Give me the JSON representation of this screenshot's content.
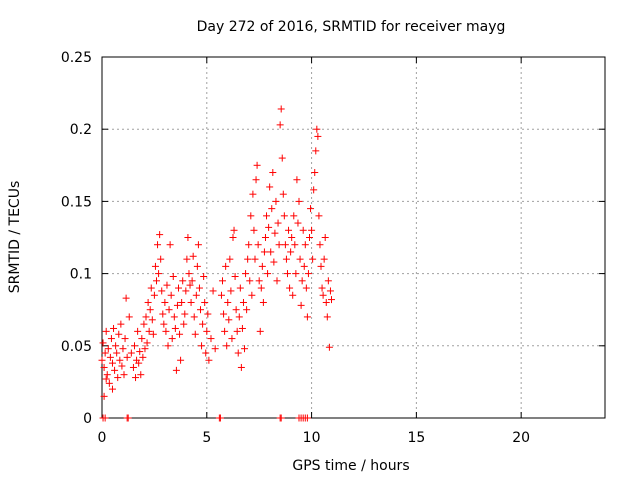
{
  "chart_data": {
    "type": "scatter",
    "title": "Day 272 of 2016, SRMTID for receiver mayg",
    "xlabel": "GPS time / hours",
    "ylabel": "SRMTID / TECUs",
    "xlim": [
      0,
      24
    ],
    "ylim": [
      0,
      0.25
    ],
    "xticks": [
      0,
      5,
      10,
      15,
      20
    ],
    "yticks": [
      0,
      0.05,
      0.1,
      0.15,
      0.2,
      0.25
    ],
    "xtick_labels": [
      "0",
      "5",
      "10",
      "15",
      "20"
    ],
    "ytick_labels": [
      "0",
      "0.05",
      "0.1",
      "0.15",
      "0.2",
      "0.25"
    ],
    "grid": true,
    "marker": "+",
    "color": "#ff0000",
    "series": [
      {
        "name": "SRMTID",
        "points": [
          [
            0.0,
            0.04
          ],
          [
            0.05,
            0.052
          ],
          [
            0.1,
            0.035
          ],
          [
            0.15,
            0.045
          ],
          [
            0.2,
            0.06
          ],
          [
            0.25,
            0.03
          ],
          [
            0.3,
            0.048
          ],
          [
            0.35,
            0.024
          ],
          [
            0.4,
            0.042
          ],
          [
            0.45,
            0.055
          ],
          [
            0.5,
            0.038
          ],
          [
            0.55,
            0.062
          ],
          [
            0.6,
            0.033
          ],
          [
            0.65,
            0.05
          ],
          [
            0.7,
            0.045
          ],
          [
            0.75,
            0.028
          ],
          [
            0.8,
            0.058
          ],
          [
            0.85,
            0.04
          ],
          [
            0.9,
            0.065
          ],
          [
            0.95,
            0.036
          ],
          [
            1.0,
            0.048
          ],
          [
            1.05,
            0.03
          ],
          [
            1.1,
            0.055
          ],
          [
            1.15,
            0.083
          ],
          [
            1.2,
            0.042
          ],
          [
            0.1,
            0.015
          ],
          [
            0.2,
            0.027
          ],
          [
            0.5,
            0.02
          ],
          [
            1.3,
            0.07
          ],
          [
            1.4,
            0.045
          ],
          [
            1.5,
            0.035
          ],
          [
            1.55,
            0.05
          ],
          [
            1.6,
            0.028
          ],
          [
            1.65,
            0.04
          ],
          [
            1.7,
            0.06
          ],
          [
            1.75,
            0.038
          ],
          [
            1.8,
            0.046
          ],
          [
            1.85,
            0.03
          ],
          [
            1.9,
            0.055
          ],
          [
            1.95,
            0.042
          ],
          [
            2.0,
            0.065
          ],
          [
            2.05,
            0.048
          ],
          [
            2.1,
            0.07
          ],
          [
            2.15,
            0.052
          ],
          [
            2.2,
            0.08
          ],
          [
            2.25,
            0.06
          ],
          [
            2.3,
            0.075
          ],
          [
            2.35,
            0.09
          ],
          [
            2.4,
            0.068
          ],
          [
            2.45,
            0.058
          ],
          [
            2.5,
            0.085
          ],
          [
            2.55,
            0.105
          ],
          [
            2.6,
            0.095
          ],
          [
            2.65,
            0.12
          ],
          [
            2.7,
            0.1
          ],
          [
            2.75,
            0.127
          ],
          [
            2.8,
            0.11
          ],
          [
            2.85,
            0.088
          ],
          [
            2.9,
            0.072
          ],
          [
            2.95,
            0.065
          ],
          [
            3.0,
            0.08
          ],
          [
            3.05,
            0.06
          ],
          [
            3.1,
            0.092
          ],
          [
            3.15,
            0.05
          ],
          [
            3.2,
            0.075
          ],
          [
            3.25,
            0.12
          ],
          [
            3.3,
            0.085
          ],
          [
            3.35,
            0.055
          ],
          [
            3.4,
            0.098
          ],
          [
            3.45,
            0.07
          ],
          [
            3.5,
            0.062
          ],
          [
            3.55,
            0.033
          ],
          [
            3.6,
            0.078
          ],
          [
            3.65,
            0.09
          ],
          [
            3.7,
            0.058
          ],
          [
            3.75,
            0.04
          ],
          [
            3.8,
            0.08
          ],
          [
            3.85,
            0.095
          ],
          [
            3.9,
            0.065
          ],
          [
            3.95,
            0.072
          ],
          [
            4.0,
            0.088
          ],
          [
            4.05,
            0.11
          ],
          [
            4.1,
            0.125
          ],
          [
            4.15,
            0.1
          ],
          [
            4.2,
            0.092
          ],
          [
            4.25,
            0.08
          ],
          [
            4.3,
            0.095
          ],
          [
            4.35,
            0.112
          ],
          [
            4.4,
            0.07
          ],
          [
            4.45,
            0.058
          ],
          [
            4.5,
            0.085
          ],
          [
            4.55,
            0.105
          ],
          [
            4.6,
            0.12
          ],
          [
            4.65,
            0.09
          ],
          [
            4.7,
            0.075
          ],
          [
            4.75,
            0.05
          ],
          [
            4.8,
            0.065
          ],
          [
            4.85,
            0.098
          ],
          [
            4.9,
            0.08
          ],
          [
            4.95,
            0.045
          ],
          [
            5.0,
            0.06
          ],
          [
            5.05,
            0.072
          ],
          [
            5.1,
            0.04
          ],
          [
            5.2,
            0.055
          ],
          [
            5.3,
            0.088
          ],
          [
            5.4,
            0.048
          ],
          [
            5.7,
            0.085
          ],
          [
            5.75,
            0.095
          ],
          [
            5.8,
            0.072
          ],
          [
            5.85,
            0.06
          ],
          [
            5.9,
            0.105
          ],
          [
            5.95,
            0.05
          ],
          [
            6.0,
            0.08
          ],
          [
            6.05,
            0.068
          ],
          [
            6.1,
            0.11
          ],
          [
            6.15,
            0.088
          ],
          [
            6.2,
            0.055
          ],
          [
            6.25,
            0.125
          ],
          [
            6.3,
            0.13
          ],
          [
            6.35,
            0.098
          ],
          [
            6.4,
            0.075
          ],
          [
            6.45,
            0.06
          ],
          [
            6.5,
            0.045
          ],
          [
            6.55,
            0.07
          ],
          [
            6.6,
            0.09
          ],
          [
            6.65,
            0.035
          ],
          [
            6.7,
            0.062
          ],
          [
            6.75,
            0.08
          ],
          [
            6.8,
            0.048
          ],
          [
            6.85,
            0.1
          ],
          [
            6.9,
            0.075
          ],
          [
            6.95,
            0.11
          ],
          [
            7.0,
            0.12
          ],
          [
            7.05,
            0.095
          ],
          [
            7.1,
            0.14
          ],
          [
            7.15,
            0.085
          ],
          [
            7.2,
            0.155
          ],
          [
            7.25,
            0.13
          ],
          [
            7.3,
            0.11
          ],
          [
            7.35,
            0.165
          ],
          [
            7.4,
            0.175
          ],
          [
            7.45,
            0.12
          ],
          [
            7.5,
            0.095
          ],
          [
            7.55,
            0.06
          ],
          [
            7.6,
            0.09
          ],
          [
            7.65,
            0.105
          ],
          [
            7.7,
            0.08
          ],
          [
            7.75,
            0.115
          ],
          [
            7.8,
            0.125
          ],
          [
            7.85,
            0.14
          ],
          [
            7.9,
            0.1
          ],
          [
            7.95,
            0.132
          ],
          [
            8.0,
            0.16
          ],
          [
            8.05,
            0.115
          ],
          [
            8.1,
            0.145
          ],
          [
            8.15,
            0.17
          ],
          [
            8.2,
            0.108
          ],
          [
            8.25,
            0.128
          ],
          [
            8.3,
            0.15
          ],
          [
            8.35,
            0.095
          ],
          [
            8.4,
            0.135
          ],
          [
            8.45,
            0.12
          ],
          [
            8.5,
            0.203
          ],
          [
            8.55,
            0.214
          ],
          [
            8.6,
            0.18
          ],
          [
            8.65,
            0.155
          ],
          [
            8.7,
            0.14
          ],
          [
            8.75,
            0.12
          ],
          [
            8.8,
            0.11
          ],
          [
            8.85,
            0.1
          ],
          [
            8.9,
            0.13
          ],
          [
            8.95,
            0.09
          ],
          [
            9.0,
            0.115
          ],
          [
            9.05,
            0.125
          ],
          [
            9.1,
            0.085
          ],
          [
            9.15,
            0.14
          ],
          [
            9.2,
            0.12
          ],
          [
            9.25,
            0.1
          ],
          [
            9.3,
            0.165
          ],
          [
            9.35,
            0.135
          ],
          [
            9.4,
            0.15
          ],
          [
            9.45,
            0.11
          ],
          [
            9.5,
            0.078
          ],
          [
            9.55,
            0.095
          ],
          [
            9.6,
            0.13
          ],
          [
            9.65,
            0.105
          ],
          [
            9.7,
            0.12
          ],
          [
            9.75,
            0.09
          ],
          [
            9.8,
            0.07
          ],
          [
            9.85,
            0.1
          ],
          [
            9.9,
            0.125
          ],
          [
            9.95,
            0.145
          ],
          [
            10.0,
            0.13
          ],
          [
            10.05,
            0.11
          ],
          [
            10.1,
            0.158
          ],
          [
            10.15,
            0.17
          ],
          [
            10.2,
            0.185
          ],
          [
            10.25,
            0.2
          ],
          [
            10.3,
            0.195
          ],
          [
            10.35,
            0.14
          ],
          [
            10.4,
            0.12
          ],
          [
            10.45,
            0.105
          ],
          [
            10.5,
            0.09
          ],
          [
            10.55,
            0.085
          ],
          [
            10.6,
            0.11
          ],
          [
            10.65,
            0.125
          ],
          [
            10.7,
            0.08
          ],
          [
            10.75,
            0.07
          ],
          [
            10.8,
            0.095
          ],
          [
            10.85,
            0.049
          ],
          [
            10.9,
            0.088
          ],
          [
            10.95,
            0.082
          ],
          [
            0.05,
            0.0
          ],
          [
            0.15,
            0.0
          ],
          [
            1.2,
            0.0
          ],
          [
            1.25,
            0.0
          ],
          [
            5.6,
            0.0
          ],
          [
            5.65,
            0.0
          ],
          [
            8.5,
            0.0
          ],
          [
            8.55,
            0.0
          ],
          [
            9.4,
            0.0
          ],
          [
            9.5,
            0.0
          ],
          [
            9.6,
            0.0
          ],
          [
            9.7,
            0.0
          ],
          [
            9.8,
            0.0
          ]
        ]
      }
    ]
  }
}
